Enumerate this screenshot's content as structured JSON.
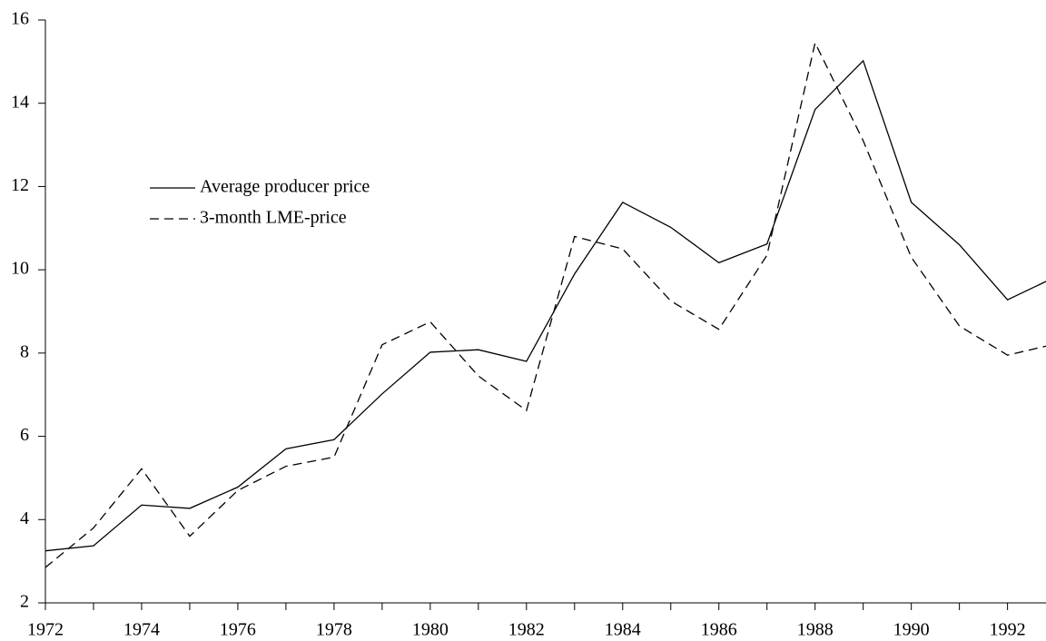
{
  "chart_data": {
    "type": "line",
    "x": [
      1972,
      1973,
      1974,
      1975,
      1976,
      1977,
      1978,
      1979,
      1980,
      1981,
      1982,
      1983,
      1984,
      1985,
      1986,
      1987,
      1988,
      1989,
      1990,
      1991,
      1992,
      1993
    ],
    "series": [
      {
        "name": "Average producer price",
        "color": "#000000",
        "dash": "solid",
        "values": [
          3.25,
          3.37,
          4.35,
          4.27,
          4.78,
          5.7,
          5.92,
          7.02,
          8.02,
          8.08,
          7.8,
          9.9,
          11.62,
          11.02,
          10.17,
          10.62,
          13.85,
          15.02,
          11.62,
          10.6,
          9.28,
          9.83
        ]
      },
      {
        "name": "3-month LME-price",
        "color": "#000000",
        "dash": "dashed",
        "values": [
          2.85,
          3.8,
          5.22,
          3.6,
          4.7,
          5.28,
          5.5,
          8.2,
          8.75,
          7.45,
          6.62,
          10.8,
          10.5,
          9.25,
          8.57,
          10.35,
          15.45,
          13.1,
          10.3,
          8.65,
          7.95,
          8.22
        ]
      }
    ],
    "xlim": [
      1972,
      1992.8
    ],
    "xticks": [
      1972,
      1974,
      1976,
      1978,
      1980,
      1982,
      1984,
      1986,
      1988,
      1990,
      1992
    ],
    "xminorticks": [
      1973,
      1975,
      1977,
      1979,
      1981,
      1983,
      1985,
      1987,
      1989,
      1991
    ],
    "ylim": [
      2,
      16
    ],
    "yticks": [
      2,
      4,
      6,
      8,
      10,
      12,
      14,
      16
    ],
    "grid": false,
    "legend": "upper left"
  }
}
